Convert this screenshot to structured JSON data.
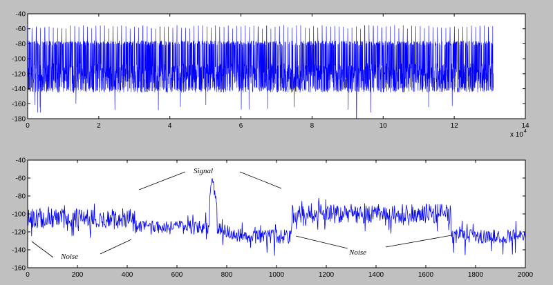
{
  "chart_data": [
    {
      "type": "line",
      "title": "",
      "xlabel": "",
      "ylabel": "",
      "xlim": [
        0,
        14
      ],
      "ylim": [
        -180,
        -40
      ],
      "x_ticks": [
        "0",
        "2",
        "4",
        "6",
        "8",
        "10",
        "12",
        "14"
      ],
      "y_ticks": [
        "-40",
        "-60",
        "-80",
        "-100",
        "-120",
        "-140",
        "-160",
        "-180"
      ],
      "x_exponent_label": "x 10",
      "x_exponent_power": "4",
      "x_data_end": 13.1,
      "line_color": "#0000ff",
      "grid": false,
      "series": [
        {
          "values_note": "dense noisy waveform, baseline about -120 dB with range -80 to -145, periodic spikes to -60 roughly every 0.12 units, occasional dips to -180",
          "baseline": -120,
          "upper_envelope": -80,
          "lower_envelope": -145,
          "spike_peak": -60,
          "spike_spacing": 0.12,
          "min_dip": -180
        }
      ]
    },
    {
      "type": "line",
      "title": "",
      "xlabel": "",
      "ylabel": "",
      "xlim": [
        0,
        2000
      ],
      "ylim": [
        -160,
        -40
      ],
      "x_ticks": [
        "0",
        "200",
        "400",
        "600",
        "800",
        "1000",
        "1200",
        "1400",
        "1600",
        "1800",
        "2000"
      ],
      "y_ticks": [
        "-40",
        "-60",
        "-80",
        "-100",
        "-120",
        "-140",
        "-160"
      ],
      "line_color": "#0000ff",
      "grid": false,
      "series": [
        {
          "segments": [
            {
              "x": [
                0,
                430
              ],
              "level": -105
            },
            {
              "x": [
                430,
                730
              ],
              "level": -115
            },
            {
              "x": [
                730,
                760
              ],
              "level": -60
            },
            {
              "x": [
                760,
                1060
              ],
              "level": -125
            },
            {
              "x": [
                1060,
                1700
              ],
              "level": -100
            },
            {
              "x": [
                1700,
                2000
              ],
              "level": -125
            }
          ]
        }
      ],
      "annotations": [
        {
          "text": "Signal",
          "x": 750,
          "y": -48,
          "pointer": "lines"
        },
        {
          "text": "Noise",
          "x": 155,
          "y": -138,
          "pointer": "lines"
        },
        {
          "text": "Noise",
          "x": 1340,
          "y": -135,
          "pointer": "lines"
        }
      ]
    }
  ]
}
